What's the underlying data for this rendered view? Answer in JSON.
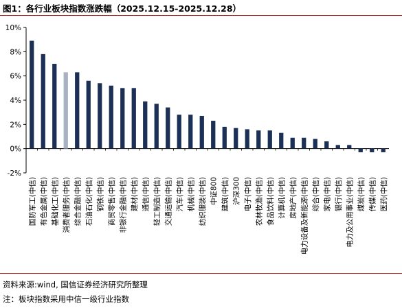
{
  "figure_title": "图1：各行业板块指数涨跌幅（2025.12.15-2025.12.28）",
  "source_note": "资料来源:wind, 国信证券经济研究所整理",
  "remark_note": "注：板块指数采用中信一级行业指数",
  "colors": {
    "bar_default": "#1c2f55",
    "bar_highlight": "#a7b1c2",
    "title_rule": "#b11b22",
    "axis": "#000000"
  },
  "chart_data": {
    "type": "bar",
    "title": "",
    "xlabel": "",
    "ylabel": "",
    "ylim": [
      -2,
      10
    ],
    "y_ticks": [
      "-2%",
      "0%",
      "2%",
      "4%",
      "6%",
      "8%",
      "10%"
    ],
    "y_tick_values": [
      -2,
      0,
      2,
      4,
      6,
      8,
      10
    ],
    "grid": false,
    "legend": "none",
    "highlight_index": 3,
    "categories": [
      "国防军工(中信)",
      "有色金属(中信)",
      "基础化工(中信)",
      "消费者服务(中信)",
      "综合金融(中信)",
      "石油石化(中信)",
      "钢铁(中信)",
      "商贸零售(中信)",
      "非银行金融(中信)",
      "建材(中信)",
      "通信(中信)",
      "轻工制造(中信)",
      "交通运输(中信)",
      "汽车(中信)",
      "机械(中信)",
      "纺织服装(中信)",
      "中证800",
      "建筑(中信)",
      "沪深300",
      "电子(中信)",
      "农林牧渔(中信)",
      "食品饮料(中信)",
      "计算机(中信)",
      "房地产(中信)",
      "电力设备及新能源(中信)",
      "综合(中信)",
      "家电(中信)",
      "银行(中信)",
      "电力及公用事业(中信)",
      "煤炭(中信)",
      "传媒(中信)",
      "医药(中信)"
    ],
    "values": [
      8.9,
      7.8,
      7.0,
      6.3,
      6.3,
      5.6,
      5.4,
      5.2,
      5.0,
      5.0,
      3.9,
      3.7,
      3.4,
      2.8,
      2.8,
      2.7,
      2.3,
      1.8,
      1.7,
      1.6,
      1.5,
      1.5,
      1.3,
      0.9,
      0.9,
      0.8,
      0.6,
      0.3,
      0.3,
      -0.3,
      -0.3,
      -0.3
    ]
  }
}
